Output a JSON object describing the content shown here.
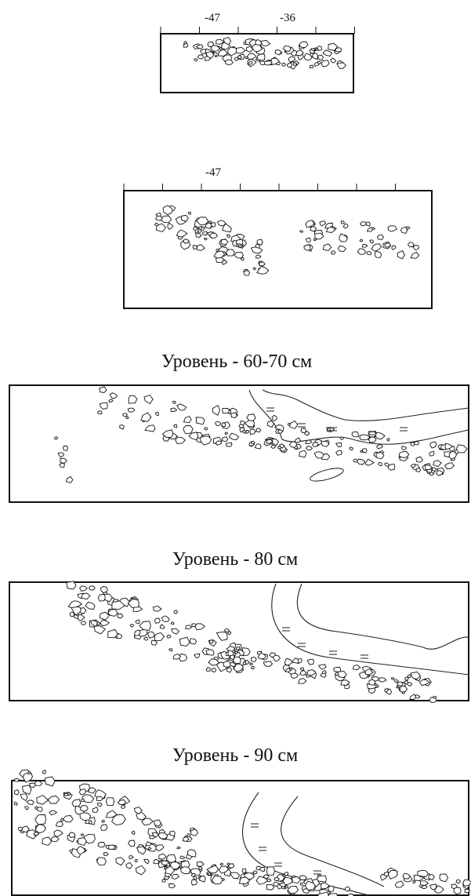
{
  "panels": [
    {
      "tick_labels": [
        "-47",
        "-36"
      ]
    },
    {
      "tick_labels": [
        "-47"
      ]
    },
    {
      "title": "Уровень - 60-70 см"
    },
    {
      "title": "Уровень - 80 см"
    },
    {
      "title": "Уровень - 90 см"
    }
  ]
}
